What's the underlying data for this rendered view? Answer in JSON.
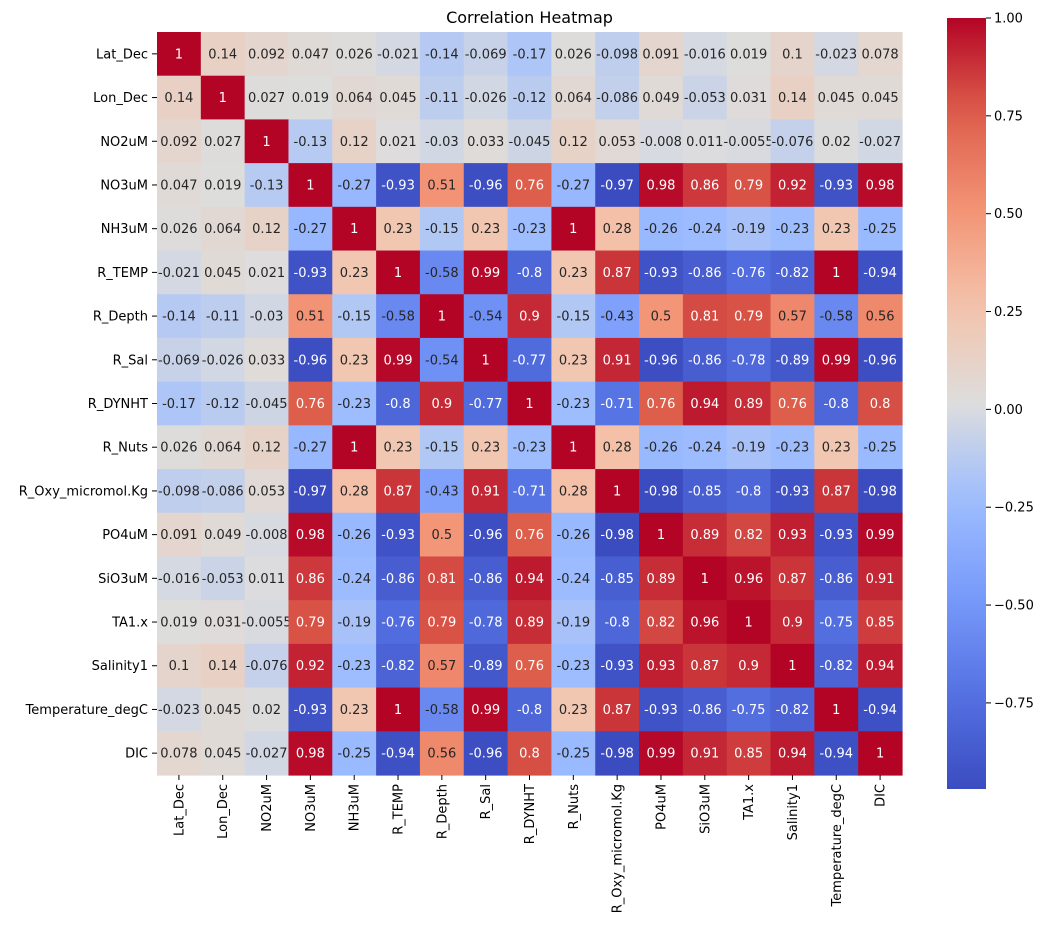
{
  "chart_data": {
    "type": "heatmap",
    "title": "Correlation Heatmap",
    "xlabel": "",
    "ylabel": "",
    "colormap": "coolwarm",
    "vmin": -0.97,
    "vmax": 1.0,
    "colorbar_ticks": [
      "1.00",
      "0.75",
      "0.50",
      "0.25",
      "0.00",
      "−0.25",
      "−0.50",
      "−0.75"
    ],
    "colorbar_tick_values": [
      1.0,
      0.75,
      0.5,
      0.25,
      0.0,
      -0.25,
      -0.5,
      -0.75
    ],
    "labels": [
      "Lat_Dec",
      "Lon_Dec",
      "NO2uM",
      "NO3uM",
      "NH3uM",
      "R_TEMP",
      "R_Depth",
      "R_Sal",
      "R_DYNHT",
      "R_Nuts",
      "R_Oxy_micromol.Kg",
      "PO4uM",
      "SiO3uM",
      "TA1.x",
      "Salinity1",
      "Temperature_degC",
      "DIC"
    ],
    "values": [
      [
        1,
        0.14,
        0.092,
        0.047,
        0.026,
        -0.021,
        -0.14,
        -0.069,
        -0.17,
        0.026,
        -0.098,
        0.091,
        -0.016,
        0.019,
        0.1,
        -0.023,
        0.078
      ],
      [
        0.14,
        1,
        0.027,
        0.019,
        0.064,
        0.045,
        -0.11,
        -0.026,
        -0.12,
        0.064,
        -0.086,
        0.049,
        -0.053,
        0.031,
        0.14,
        0.045,
        0.045
      ],
      [
        0.092,
        0.027,
        1,
        -0.13,
        0.12,
        0.021,
        -0.03,
        0.033,
        -0.045,
        0.12,
        0.053,
        -0.008,
        0.011,
        -0.0055,
        -0.076,
        0.02,
        -0.027
      ],
      [
        0.047,
        0.019,
        -0.13,
        1,
        -0.27,
        -0.93,
        0.51,
        -0.96,
        0.76,
        -0.27,
        -0.97,
        0.98,
        0.86,
        0.79,
        0.92,
        -0.93,
        0.98
      ],
      [
        0.026,
        0.064,
        0.12,
        -0.27,
        1,
        0.23,
        -0.15,
        0.23,
        -0.23,
        1,
        0.28,
        -0.26,
        -0.24,
        -0.19,
        -0.23,
        0.23,
        -0.25
      ],
      [
        -0.021,
        0.045,
        0.021,
        -0.93,
        0.23,
        1,
        -0.58,
        0.99,
        -0.8,
        0.23,
        0.87,
        -0.93,
        -0.86,
        -0.76,
        -0.82,
        1,
        -0.94
      ],
      [
        -0.14,
        -0.11,
        -0.03,
        0.51,
        -0.15,
        -0.58,
        1,
        -0.54,
        0.9,
        -0.15,
        -0.43,
        0.5,
        0.81,
        0.79,
        0.57,
        -0.58,
        0.56
      ],
      [
        -0.069,
        -0.026,
        0.033,
        -0.96,
        0.23,
        0.99,
        -0.54,
        1,
        -0.77,
        0.23,
        0.91,
        -0.96,
        -0.86,
        -0.78,
        -0.89,
        0.99,
        -0.96
      ],
      [
        -0.17,
        -0.12,
        -0.045,
        0.76,
        -0.23,
        -0.8,
        0.9,
        -0.77,
        1,
        -0.23,
        -0.71,
        0.76,
        0.94,
        0.89,
        0.76,
        -0.8,
        0.8
      ],
      [
        0.026,
        0.064,
        0.12,
        -0.27,
        1,
        0.23,
        -0.15,
        0.23,
        -0.23,
        1,
        0.28,
        -0.26,
        -0.24,
        -0.19,
        -0.23,
        0.23,
        -0.25
      ],
      [
        -0.098,
        -0.086,
        0.053,
        -0.97,
        0.28,
        0.87,
        -0.43,
        0.91,
        -0.71,
        0.28,
        1,
        -0.98,
        -0.85,
        -0.8,
        -0.93,
        0.87,
        -0.98
      ],
      [
        0.091,
        0.049,
        -0.008,
        0.98,
        -0.26,
        -0.93,
        0.5,
        -0.96,
        0.76,
        -0.26,
        -0.98,
        1,
        0.89,
        0.82,
        0.93,
        -0.93,
        0.99
      ],
      [
        -0.016,
        -0.053,
        0.011,
        0.86,
        -0.24,
        -0.86,
        0.81,
        -0.86,
        0.94,
        -0.24,
        -0.85,
        0.89,
        1,
        0.96,
        0.87,
        -0.86,
        0.91
      ],
      [
        0.019,
        0.031,
        -0.0055,
        0.79,
        -0.19,
        -0.76,
        0.79,
        -0.78,
        0.89,
        -0.19,
        -0.8,
        0.82,
        0.96,
        1,
        0.9,
        -0.75,
        0.85
      ],
      [
        0.1,
        0.14,
        -0.076,
        0.92,
        -0.23,
        -0.82,
        0.57,
        -0.89,
        0.76,
        -0.23,
        -0.93,
        0.93,
        0.87,
        0.9,
        1,
        -0.82,
        0.94
      ],
      [
        -0.023,
        0.045,
        0.02,
        -0.93,
        0.23,
        1,
        -0.58,
        0.99,
        -0.8,
        0.23,
        0.87,
        -0.93,
        -0.86,
        -0.75,
        -0.82,
        1,
        -0.94
      ],
      [
        0.078,
        0.045,
        -0.027,
        0.98,
        -0.25,
        -0.94,
        0.56,
        -0.96,
        0.8,
        -0.25,
        -0.98,
        0.99,
        0.91,
        0.85,
        0.94,
        -0.94,
        1
      ]
    ]
  }
}
